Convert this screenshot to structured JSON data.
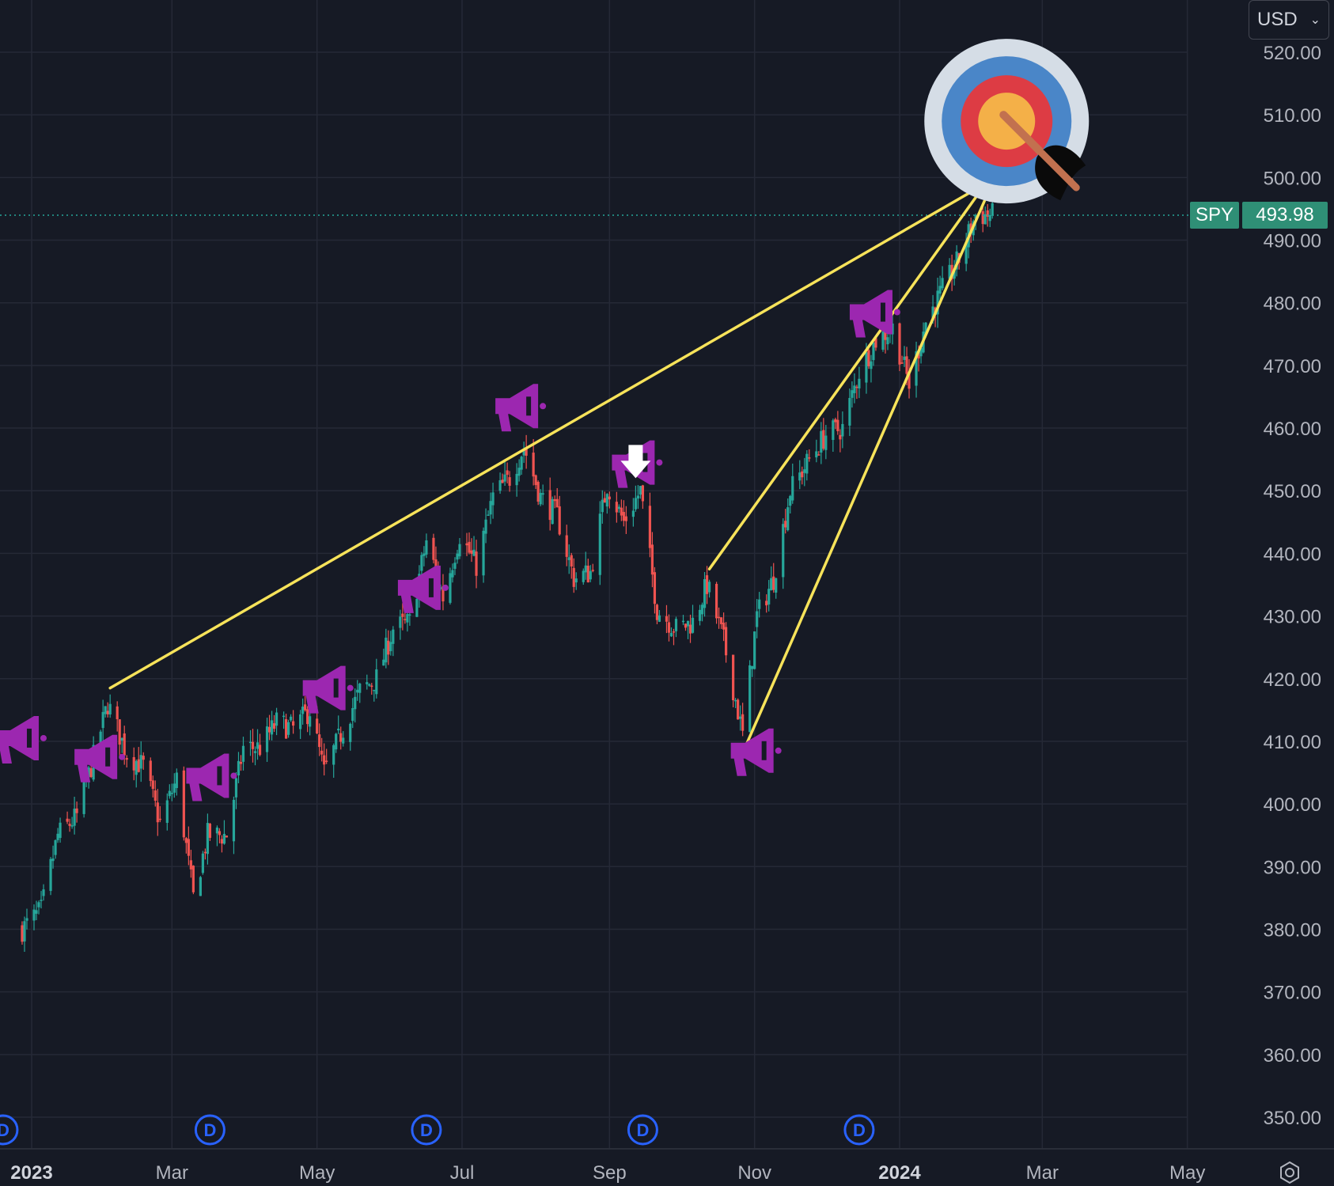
{
  "chart_data": {
    "type": "candlestick",
    "symbol": "SPY",
    "currency": "USD",
    "last_price": "493.98",
    "y_ticks": [
      "520.00",
      "510.00",
      "500.00",
      "490.00",
      "480.00",
      "470.00",
      "460.00",
      "450.00",
      "440.00",
      "430.00",
      "420.00",
      "410.00",
      "400.00",
      "390.00",
      "380.00",
      "370.00",
      "360.00",
      "350.00"
    ],
    "ylim": [
      346,
      523
    ],
    "x_ticks": [
      {
        "label": "2023",
        "date": "2023-01-01",
        "bold": true
      },
      {
        "label": "Mar",
        "date": "2023-03-01",
        "bold": false
      },
      {
        "label": "May",
        "date": "2023-05-01",
        "bold": false
      },
      {
        "label": "Jul",
        "date": "2023-07-01",
        "bold": false
      },
      {
        "label": "Sep",
        "date": "2023-09-01",
        "bold": false
      },
      {
        "label": "Nov",
        "date": "2023-11-01",
        "bold": false
      },
      {
        "label": "2024",
        "date": "2024-01-01",
        "bold": true
      },
      {
        "label": "Mar",
        "date": "2024-03-01",
        "bold": false
      },
      {
        "label": "May",
        "date": "2024-05-01",
        "bold": false
      }
    ],
    "close_path": [
      [
        "2022-12-28",
        380
      ],
      [
        "2023-01-05",
        383
      ],
      [
        "2023-01-12",
        395
      ],
      [
        "2023-01-20",
        398
      ],
      [
        "2023-01-26",
        406
      ],
      [
        "2023-02-02",
        416
      ],
      [
        "2023-02-10",
        408
      ],
      [
        "2023-02-17",
        406
      ],
      [
        "2023-02-24",
        397
      ],
      [
        "2023-03-03",
        404
      ],
      [
        "2023-03-10",
        385
      ],
      [
        "2023-03-16",
        395
      ],
      [
        "2023-03-24",
        395
      ],
      [
        "2023-03-31",
        409
      ],
      [
        "2023-04-07",
        409
      ],
      [
        "2023-04-14",
        413
      ],
      [
        "2023-04-21",
        412
      ],
      [
        "2023-04-28",
        415
      ],
      [
        "2023-05-04",
        405
      ],
      [
        "2023-05-12",
        412
      ],
      [
        "2023-05-19",
        418
      ],
      [
        "2023-05-26",
        420
      ],
      [
        "2023-06-02",
        428
      ],
      [
        "2023-06-09",
        429
      ],
      [
        "2023-06-16",
        442
      ],
      [
        "2023-06-23",
        433
      ],
      [
        "2023-06-30",
        443
      ],
      [
        "2023-07-07",
        438
      ],
      [
        "2023-07-14",
        449
      ],
      [
        "2023-07-21",
        452
      ],
      [
        "2023-07-27",
        457
      ],
      [
        "2023-08-03",
        449
      ],
      [
        "2023-08-10",
        446
      ],
      [
        "2023-08-17",
        436
      ],
      [
        "2023-08-24",
        437
      ],
      [
        "2023-08-31",
        451
      ],
      [
        "2023-09-07",
        445
      ],
      [
        "2023-09-14",
        450
      ],
      [
        "2023-09-21",
        431
      ],
      [
        "2023-09-29",
        428
      ],
      [
        "2023-10-06",
        429
      ],
      [
        "2023-10-12",
        435
      ],
      [
        "2023-10-19",
        426
      ],
      [
        "2023-10-27",
        411
      ],
      [
        "2023-11-02",
        430
      ],
      [
        "2023-11-09",
        436
      ],
      [
        "2023-11-16",
        450
      ],
      [
        "2023-11-24",
        455
      ],
      [
        "2023-12-01",
        459
      ],
      [
        "2023-12-08",
        460
      ],
      [
        "2023-12-15",
        469
      ],
      [
        "2023-12-22",
        474
      ],
      [
        "2023-12-29",
        476
      ],
      [
        "2024-01-05",
        467
      ],
      [
        "2024-01-12",
        477
      ],
      [
        "2024-01-19",
        482
      ],
      [
        "2024-01-26",
        487
      ],
      [
        "2024-02-02",
        494
      ],
      [
        "2024-02-09",
        494
      ]
    ],
    "annotations": {
      "trend_lines": [
        {
          "from": [
            "2023-02-03",
            418.5
          ],
          "to": [
            "2024-02-06",
            499
          ]
        },
        {
          "from": [
            "2023-10-13",
            437.5
          ],
          "to": [
            "2024-02-08",
            500
          ]
        },
        {
          "from": [
            "2023-10-28",
            409
          ],
          "to": [
            "2024-02-10",
            500
          ]
        }
      ],
      "target_icon": {
        "date": "2024-02-15",
        "price": 509
      },
      "down_arrow": {
        "date": "2023-09-12",
        "price": 452
      },
      "megaphone_icons": [
        {
          "date": "2022-12-27",
          "price": 410
        },
        {
          "date": "2023-01-29",
          "price": 407
        },
        {
          "date": "2023-03-17",
          "price": 404
        },
        {
          "date": "2023-05-05",
          "price": 418
        },
        {
          "date": "2023-06-14",
          "price": 434
        },
        {
          "date": "2023-07-25",
          "price": 463
        },
        {
          "date": "2023-09-12",
          "price": 454
        },
        {
          "date": "2023-11-01",
          "price": 408
        },
        {
          "date": "2023-12-21",
          "price": 478
        }
      ],
      "dividend_markers": [
        {
          "date": "2022-12-20",
          "label": "D"
        },
        {
          "date": "2023-03-17",
          "label": "D"
        },
        {
          "date": "2023-06-16",
          "label": "D"
        },
        {
          "date": "2023-09-15",
          "label": "D"
        },
        {
          "date": "2023-12-15",
          "label": "D"
        }
      ]
    },
    "colors": {
      "background": "#161a25",
      "grid": "#252936",
      "up": "#26a69a",
      "down": "#ef5350",
      "trend_line": "#f7e35a",
      "megaphone": "#9c27b0",
      "dividend": "#2962ff",
      "price_tag": "#2f8f76",
      "price_line": "#26a69a"
    }
  },
  "ui": {
    "currency_label": "USD",
    "symbol_tag": "SPY",
    "price_tag": "493.98",
    "settings_icon": "settings-gear-icon"
  }
}
